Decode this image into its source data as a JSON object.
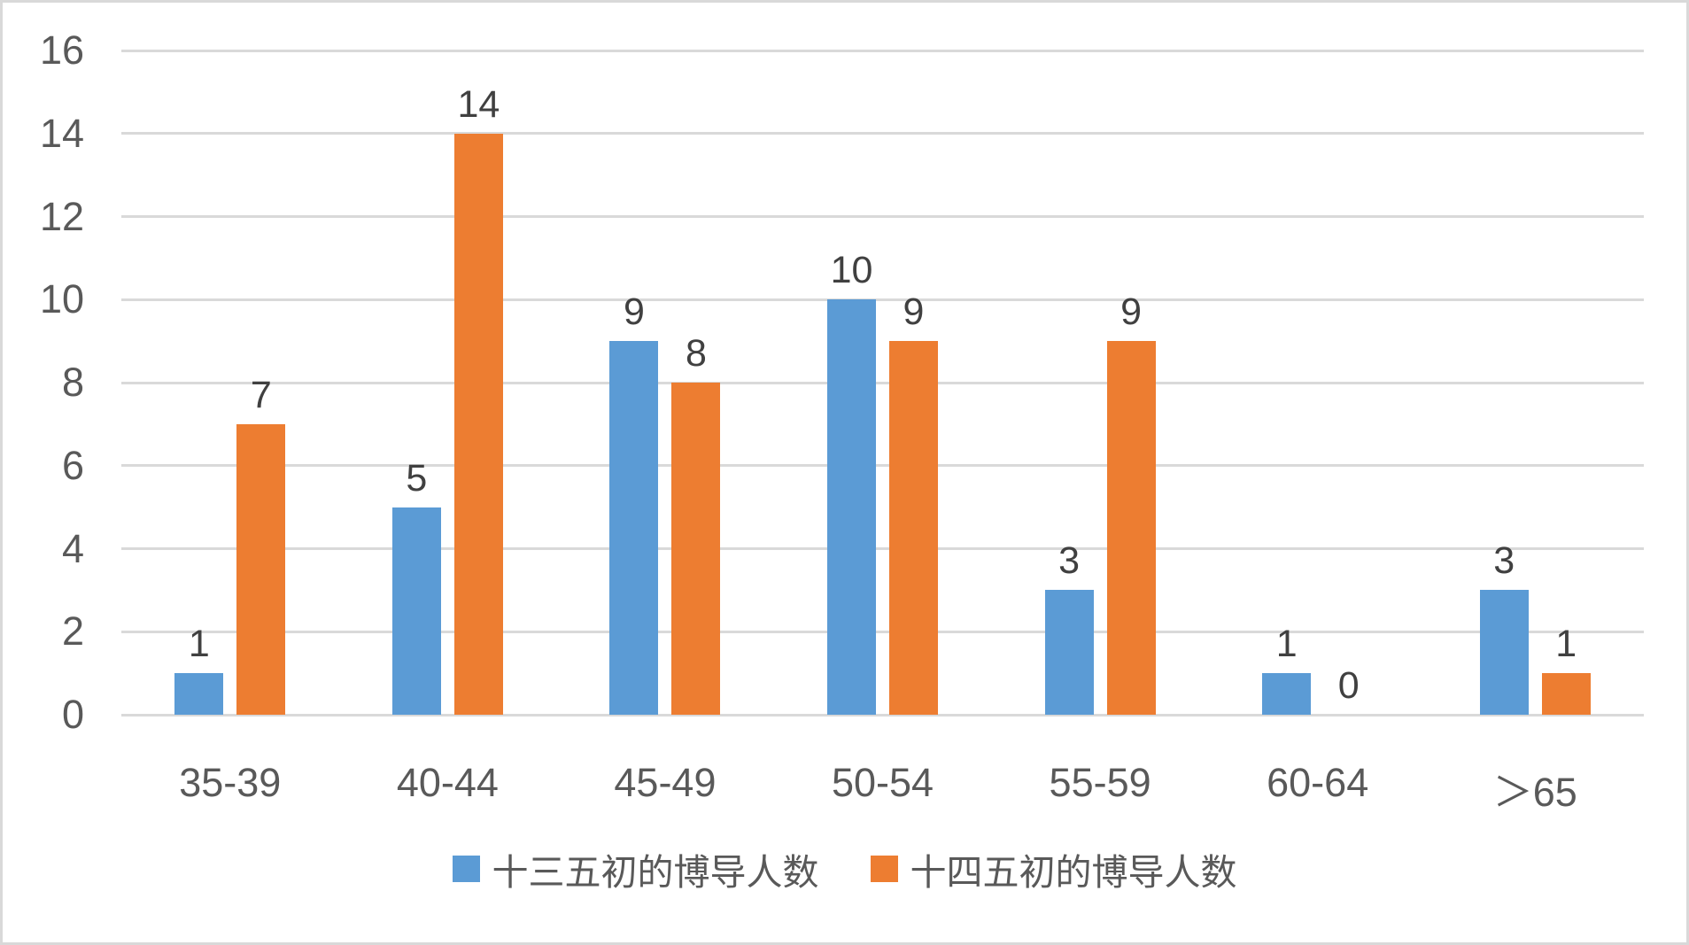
{
  "chart_data": {
    "type": "bar",
    "title": "",
    "categories": [
      "35-39",
      "40-44",
      "45-49",
      "50-54",
      "55-59",
      "60-64",
      "＞65"
    ],
    "series": [
      {
        "name": "十三五初的博导人数",
        "color": "#5B9BD5",
        "values": [
          1,
          5,
          9,
          10,
          3,
          1,
          3
        ]
      },
      {
        "name": "十四五初的博导人数",
        "color": "#ED7D31",
        "values": [
          7,
          14,
          8,
          9,
          9,
          0,
          1
        ]
      }
    ],
    "xlabel": "",
    "ylabel": "",
    "ylim": [
      0,
      16
    ],
    "yticks": [
      0,
      2,
      4,
      6,
      8,
      10,
      12,
      14,
      16
    ],
    "grid": true,
    "legend_position": "bottom",
    "data_labels": true
  },
  "style": {
    "gridline_color": "#d9d9d9",
    "axis_text_color": "#595959",
    "data_label_color": "#404040",
    "frame_border_color": "#d9d9d9",
    "background_color": "#ffffff"
  }
}
